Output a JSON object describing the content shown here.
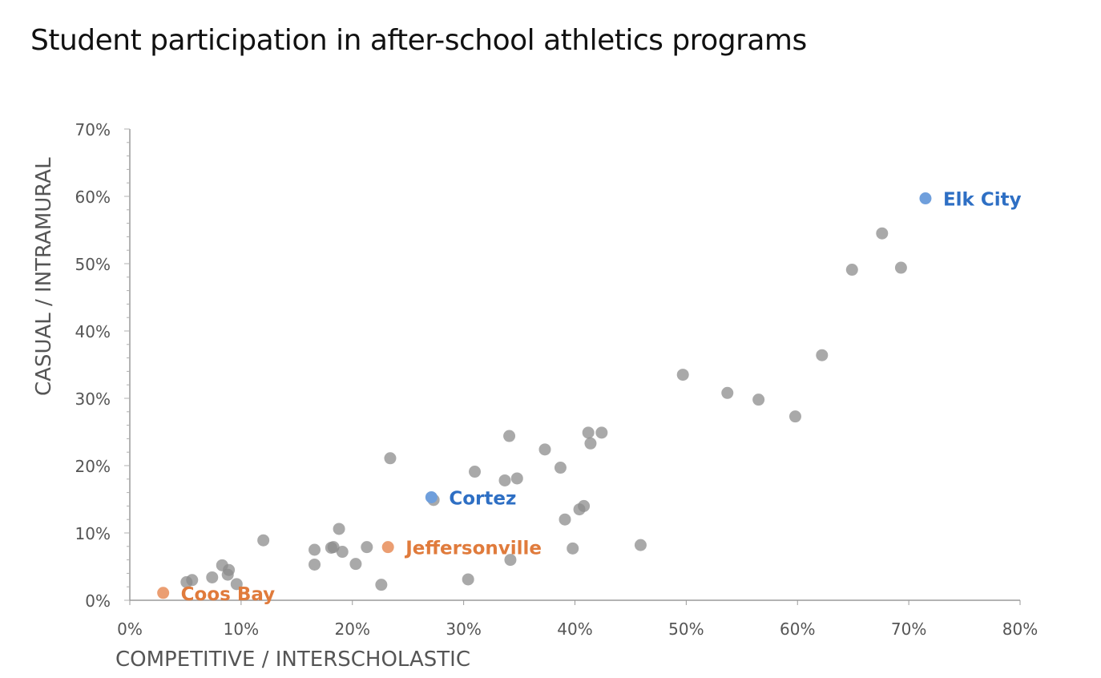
{
  "chart_data": {
    "type": "scatter",
    "title": "Student participation in after-school athletics programs",
    "xlabel": "COMPETITIVE / INTERSCHOLASTIC",
    "ylabel": "CASUAL / INTRAMURAL",
    "xlim": [
      0,
      80
    ],
    "ylim": [
      0,
      70
    ],
    "x_ticks": [
      "0%",
      "10%",
      "20%",
      "30%",
      "40%",
      "50%",
      "60%",
      "70%",
      "80%"
    ],
    "y_ticks": [
      "0%",
      "10%",
      "20%",
      "30%",
      "40%",
      "50%",
      "60%",
      "70%"
    ],
    "grid": false,
    "colors": {
      "default": "#8c8c8c",
      "blue": "#2e6fc4",
      "blue_point": "#6f9fdc",
      "orange": "#e07b3c",
      "orange_point": "#eb9e72"
    },
    "points": [
      {
        "x": 5.1,
        "y": 2.7
      },
      {
        "x": 5.6,
        "y": 3.0
      },
      {
        "x": 7.4,
        "y": 3.4
      },
      {
        "x": 8.3,
        "y": 5.2
      },
      {
        "x": 8.8,
        "y": 3.8
      },
      {
        "x": 8.9,
        "y": 4.5
      },
      {
        "x": 9.6,
        "y": 2.4
      },
      {
        "x": 12.0,
        "y": 8.9
      },
      {
        "x": 16.6,
        "y": 5.3
      },
      {
        "x": 16.6,
        "y": 7.5
      },
      {
        "x": 18.1,
        "y": 7.8
      },
      {
        "x": 18.3,
        "y": 7.9
      },
      {
        "x": 18.8,
        "y": 10.6
      },
      {
        "x": 19.1,
        "y": 7.2
      },
      {
        "x": 20.3,
        "y": 5.4
      },
      {
        "x": 21.3,
        "y": 7.9
      },
      {
        "x": 22.6,
        "y": 2.3
      },
      {
        "x": 23.4,
        "y": 21.1
      },
      {
        "x": 27.3,
        "y": 14.9
      },
      {
        "x": 30.4,
        "y": 3.1
      },
      {
        "x": 31.0,
        "y": 19.1
      },
      {
        "x": 33.7,
        "y": 17.8
      },
      {
        "x": 34.1,
        "y": 24.4
      },
      {
        "x": 34.2,
        "y": 6.0
      },
      {
        "x": 34.8,
        "y": 18.1
      },
      {
        "x": 37.3,
        "y": 22.4
      },
      {
        "x": 38.7,
        "y": 19.7
      },
      {
        "x": 39.1,
        "y": 12.0
      },
      {
        "x": 39.8,
        "y": 7.7
      },
      {
        "x": 40.4,
        "y": 13.5
      },
      {
        "x": 40.8,
        "y": 14.0
      },
      {
        "x": 41.2,
        "y": 24.9
      },
      {
        "x": 41.4,
        "y": 23.3
      },
      {
        "x": 42.4,
        "y": 24.9
      },
      {
        "x": 45.9,
        "y": 8.2
      },
      {
        "x": 49.7,
        "y": 33.5
      },
      {
        "x": 53.7,
        "y": 30.8
      },
      {
        "x": 56.5,
        "y": 29.8
      },
      {
        "x": 59.8,
        "y": 27.3
      },
      {
        "x": 62.2,
        "y": 36.4
      },
      {
        "x": 64.9,
        "y": 49.1
      },
      {
        "x": 67.6,
        "y": 54.5
      },
      {
        "x": 69.3,
        "y": 49.4
      }
    ],
    "highlighted": [
      {
        "name": "Elk City",
        "x": 71.5,
        "y": 59.7,
        "color": "blue"
      },
      {
        "name": "Cortez",
        "x": 27.1,
        "y": 15.3,
        "color": "blue"
      },
      {
        "name": "Jeffersonville",
        "x": 23.2,
        "y": 7.9,
        "color": "orange"
      },
      {
        "name": "Coos Bay",
        "x": 3.0,
        "y": 1.1,
        "color": "orange"
      }
    ]
  }
}
